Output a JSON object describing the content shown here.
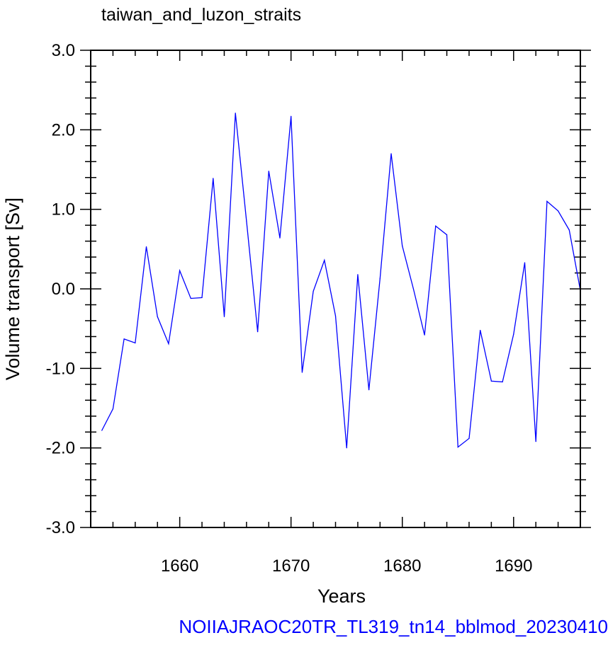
{
  "chart_data": {
    "type": "line",
    "title": "taiwan_and_luzon_straits",
    "xlabel": "Years",
    "ylabel": "Volume transport [Sv]",
    "xlim": [
      1652,
      1696
    ],
    "ylim": [
      -3.0,
      3.0
    ],
    "x_ticks": [
      1660,
      1670,
      1680,
      1690
    ],
    "x_tick_labels": [
      "1660",
      "1670",
      "1680",
      "1690"
    ],
    "y_ticks": [
      -3.0,
      -2.0,
      -1.0,
      0.0,
      1.0,
      2.0,
      3.0
    ],
    "y_tick_labels": [
      "-3.0",
      "-2.0",
      "-1.0",
      "0.0",
      "1.0",
      "2.0",
      "3.0"
    ],
    "grid": false,
    "series": [
      {
        "color": "#0000ff",
        "x": [
          1653,
          1654,
          1655,
          1656,
          1657,
          1658,
          1659,
          1660,
          1661,
          1662,
          1663,
          1664,
          1665,
          1666,
          1667,
          1668,
          1669,
          1670,
          1671,
          1672,
          1673,
          1674,
          1675,
          1676,
          1677,
          1678,
          1679,
          1680,
          1681,
          1682,
          1683,
          1684,
          1685,
          1686,
          1687,
          1688,
          1689,
          1690,
          1691,
          1692,
          1693,
          1694,
          1695,
          1696
        ],
        "y": [
          -1.78,
          -1.51,
          -0.63,
          -0.68,
          0.53,
          -0.35,
          -0.69,
          0.23,
          -0.12,
          -0.11,
          1.39,
          -0.35,
          2.21,
          0.85,
          -0.54,
          1.48,
          0.64,
          2.17,
          -1.05,
          -0.03,
          0.36,
          -0.34,
          -2.0,
          0.18,
          -1.27,
          0.13,
          1.7,
          0.54,
          0.0,
          -0.58,
          0.79,
          0.68,
          -1.99,
          -1.88,
          -0.52,
          -1.16,
          -1.17,
          -0.57,
          0.33,
          -1.92,
          1.1,
          0.98,
          0.74,
          -0.02
        ]
      }
    ]
  },
  "footer": {
    "text": "NOIIAJRAOC20TR_TL319_tn14_bblmod_20230410",
    "color": "#0000ff"
  }
}
